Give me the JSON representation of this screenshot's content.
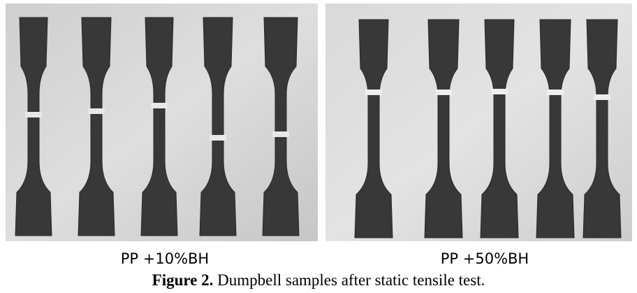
{
  "panels": [
    {
      "label": "PP +10%BH"
    },
    {
      "label": "PP +50%BH"
    }
  ],
  "caption": {
    "label": "Figure 2.",
    "text": "Dumpbell samples after static tensile test."
  }
}
